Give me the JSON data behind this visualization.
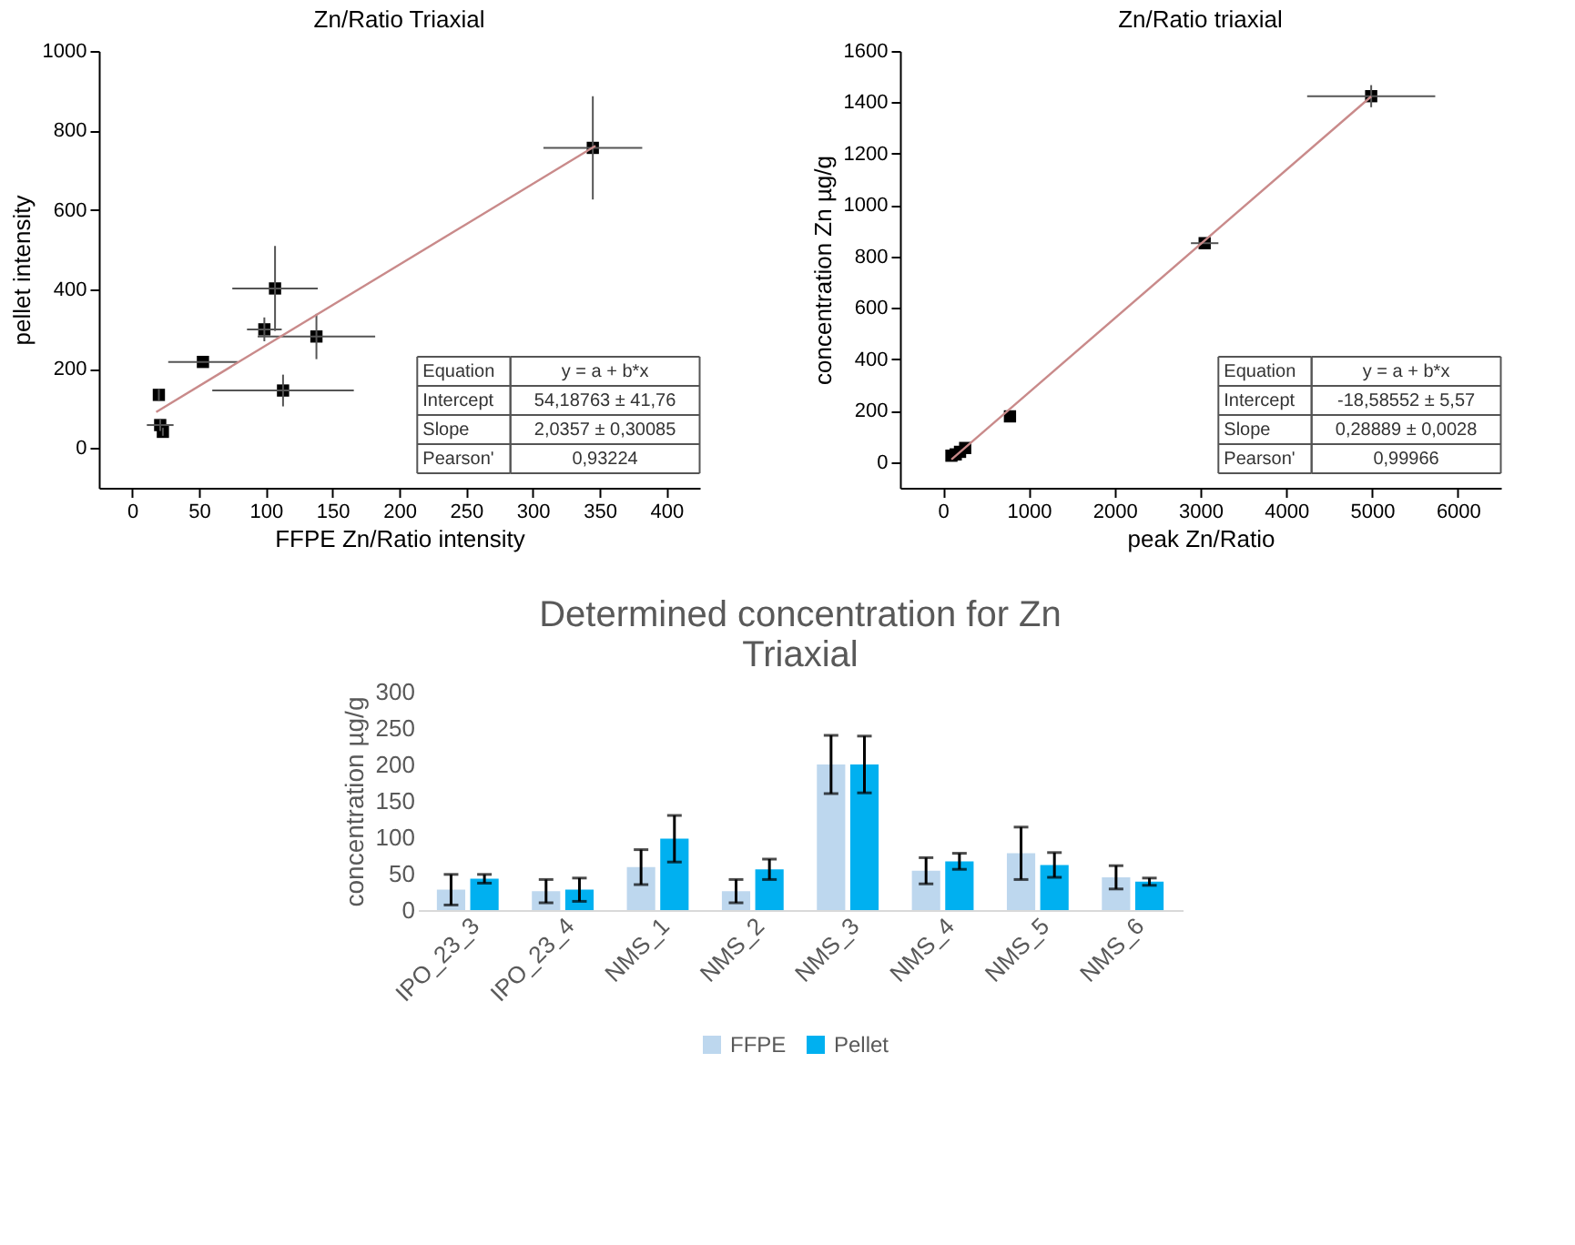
{
  "chart_data": [
    {
      "type": "scatter",
      "title": "Zn/Ratio Triaxial",
      "xlabel": "FFPE Zn/Ratio intensity",
      "ylabel": "pellet intensity",
      "marker": "square",
      "grid": false,
      "xlim": [
        -25,
        425
      ],
      "xticks": [
        0,
        50,
        100,
        150,
        200,
        250,
        300,
        350,
        400
      ],
      "ylim": [
        -100,
        1000
      ],
      "yticks": [
        0,
        200,
        400,
        600,
        800,
        1000
      ],
      "annotations": [
        "Equation",
        "y = a + b*x",
        "Intercept",
        "54,18763 ± 41,76",
        "Slope",
        "2,0357 ± 0,30085",
        "Pearson'",
        "0,93224"
      ],
      "series": [
        {
          "type": "scatter",
          "color": "#000000",
          "x": [
            345,
            107,
            99,
            138,
            53,
            113,
            20,
            21,
            23
          ],
          "values": [
            756,
            402,
            299,
            281,
            217,
            145,
            134,
            58,
            41
          ],
          "errors": [
            130,
            107,
            30,
            57,
            null,
            40,
            15,
            15,
            10
          ],
          "xerrors": [
            37,
            32,
            13,
            44,
            26,
            53,
            null,
            10,
            null
          ]
        },
        {
          "type": "line",
          "marker": "none",
          "color": "#c98a8a",
          "x": [
            18,
            347
          ],
          "values": [
            91,
            761
          ]
        }
      ]
    },
    {
      "type": "scatter",
      "title": "Zn/Ratio triaxial",
      "xlabel": "peak Zn/Ratio",
      "ylabel": "concentration Zn µg/g",
      "marker": "square",
      "grid": false,
      "xlim": [
        -500,
        6500
      ],
      "xticks": [
        0,
        1000,
        2000,
        3000,
        4000,
        5000,
        6000
      ],
      "ylim": [
        -100,
        1600
      ],
      "yticks": [
        0,
        200,
        400,
        600,
        800,
        1000,
        1200,
        1400,
        1600
      ],
      "annotations": [
        "Equation",
        "y = a + b*x",
        "Intercept",
        "-18,58552 ± 5,57",
        "Slope",
        "0,28889 ± 0,0028",
        "Pearson'",
        "0,99966"
      ],
      "series": [
        {
          "type": "scatter",
          "color": "#000000",
          "x": [
            100,
            150,
            200,
            260,
            782,
            3050,
            4990
          ],
          "values": [
            25,
            30,
            40,
            55,
            178,
            852,
            1424
          ],
          "errors": [
            null,
            null,
            null,
            null,
            null,
            null,
            43
          ],
          "xerrors": [
            null,
            null,
            null,
            null,
            null,
            160,
            746
          ]
        },
        {
          "type": "line",
          "marker": "none",
          "color": "#c98a8a",
          "x": [
            100,
            4990
          ],
          "values": [
            10,
            1423
          ]
        }
      ]
    },
    {
      "type": "bar",
      "title": "Determined concentration for Zn\nTriaxial",
      "ylabel": "concentration µg/g",
      "grid": false,
      "legend": "bottom",
      "ylim": [
        0,
        300
      ],
      "yticks": [
        0,
        50,
        100,
        150,
        200,
        250,
        300
      ],
      "categories": [
        "IPO_23_3",
        "IPO_23_4",
        "NMS_1",
        "NMS_2",
        "NMS_3",
        "NMS_4",
        "NMS_5",
        "NMS_6"
      ],
      "series": [
        {
          "name": "FFPE",
          "color": "#bdd7ee",
          "values": [
            28,
            26,
            59,
            26,
            200,
            54,
            78,
            45
          ],
          "errors": [
            21,
            16,
            24,
            16,
            40,
            18,
            36,
            16
          ]
        },
        {
          "name": "Pellet",
          "color": "#00b0f0",
          "values": [
            43,
            28,
            98,
            56,
            200,
            67,
            62,
            39
          ],
          "errors": [
            6,
            16,
            32,
            14,
            39,
            11,
            17,
            5
          ]
        }
      ]
    }
  ]
}
